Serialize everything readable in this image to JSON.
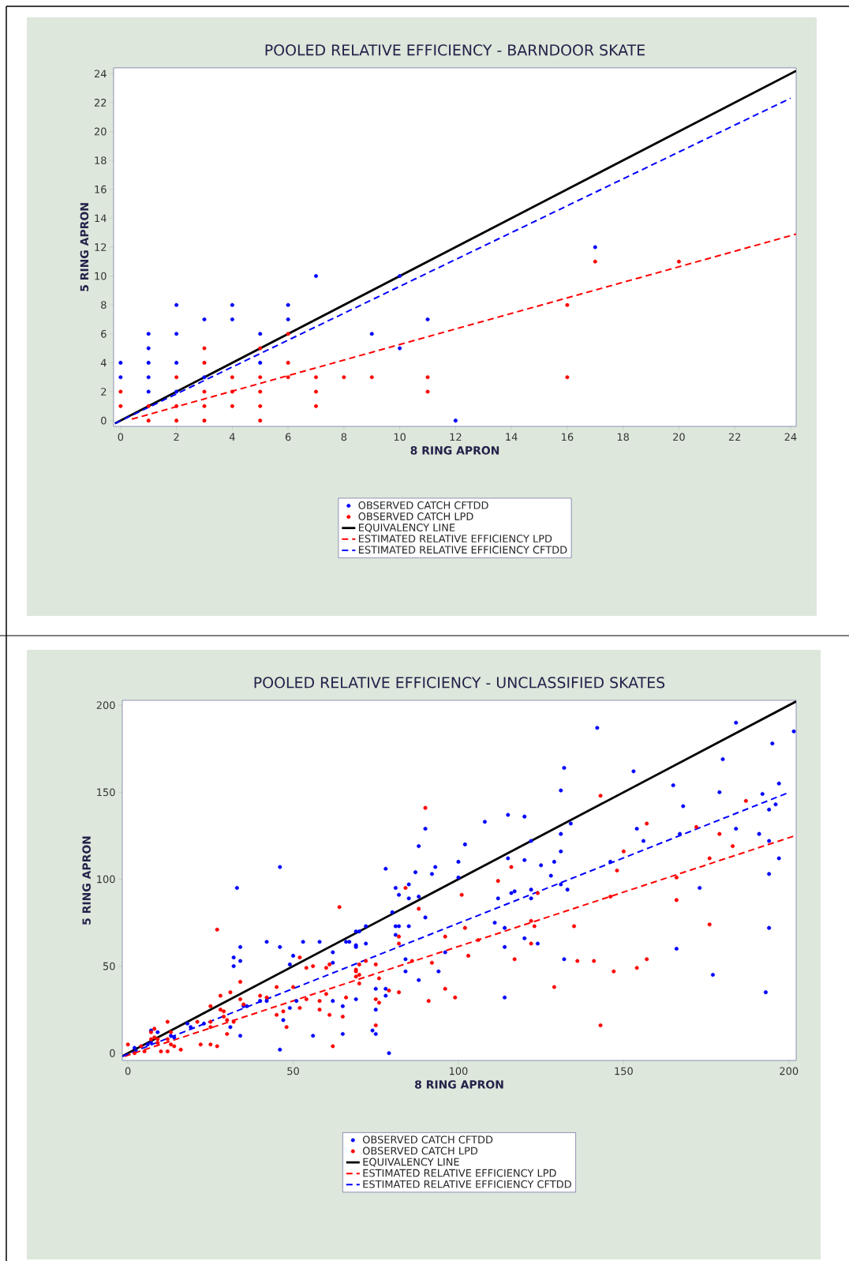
{
  "chart_data": [
    {
      "type": "scatter",
      "title": "POOLED RELATIVE EFFICIENCY - BARNDOOR SKATE",
      "xlabel": "8 RING APRON",
      "ylabel": "5 RING APRON",
      "xlim": [
        -0.25,
        24.2
      ],
      "ylim": [
        -0.4,
        24.4
      ],
      "xticks": [
        0,
        2,
        4,
        6,
        8,
        10,
        12,
        14,
        16,
        18,
        20,
        22,
        24
      ],
      "yticks": [
        0,
        2,
        4,
        6,
        8,
        10,
        12,
        14,
        16,
        18,
        20,
        22,
        24
      ],
      "legend": "bottom",
      "marker": "circle",
      "series": [
        {
          "name": "OBSERVED CATCH CFTDD",
          "color": "#0000ff",
          "x": [
            0,
            0,
            1,
            1,
            1,
            1,
            1,
            2,
            2,
            2,
            2,
            3,
            3,
            4,
            4,
            5,
            5,
            6,
            6,
            7,
            9,
            10,
            10,
            11,
            12,
            17
          ],
          "values": [
            4,
            3,
            6,
            5,
            4,
            3,
            2,
            8,
            6,
            4,
            2,
            7,
            3,
            8,
            7,
            6,
            4,
            8,
            7,
            10,
            6,
            10,
            5,
            7,
            0,
            12
          ]
        },
        {
          "name": "OBSERVED CATCH LPD",
          "color": "#ff0000",
          "x": [
            0,
            0,
            1,
            1,
            2,
            2,
            2,
            3,
            3,
            3,
            3,
            3,
            4,
            4,
            4,
            5,
            5,
            5,
            5,
            5,
            6,
            6,
            6,
            7,
            7,
            7,
            8,
            9,
            11,
            11,
            16,
            16,
            17,
            20
          ],
          "values": [
            2,
            1,
            1,
            0,
            3,
            1,
            0,
            5,
            4,
            2,
            1,
            0,
            3,
            2,
            1,
            5,
            3,
            2,
            1,
            0,
            6,
            4,
            3,
            3,
            2,
            1,
            3,
            3,
            3,
            2,
            8,
            3,
            11,
            11
          ]
        },
        {
          "name": "EQUIVALENCY LINE",
          "type": "line",
          "marker": "none",
          "line_style": "solid",
          "color": "#000000",
          "x": [
            -0.2,
            24.2
          ],
          "values": [
            -0.2,
            24.2
          ]
        },
        {
          "name": "ESTIMATED RELATIVE EFFICIENCY LPD",
          "type": "line",
          "marker": "none",
          "line_style": "dashed",
          "color": "#ff0000",
          "x": [
            0.4,
            24.2
          ],
          "values": [
            0.1,
            12.9
          ]
        },
        {
          "name": "ESTIMATED RELATIVE EFFICIENCY CFTDD",
          "type": "line",
          "marker": "none",
          "line_style": "dashed",
          "color": "#0000ff",
          "x": [
            -0.2,
            24.0
          ],
          "values": [
            -0.2,
            22.3
          ]
        }
      ]
    },
    {
      "type": "scatter",
      "title": "POOLED RELATIVE EFFICIENCY - UNCLASSIFIED SKATES",
      "xlabel": "8 RING APRON",
      "ylabel": "5 RING APRON",
      "xlim": [
        -1.7,
        202.2
      ],
      "ylim": [
        -4.2,
        202.8
      ],
      "xticks": [
        0,
        50,
        100,
        150,
        200
      ],
      "yticks": [
        0,
        50,
        100,
        150,
        200
      ],
      "legend": "bottom",
      "marker": "circle",
      "series": [
        {
          "name": "OBSERVED CATCH CFTDD",
          "color": "#0000ff",
          "x": [
            33,
            46,
            78,
            90,
            88,
            102,
            100,
            93,
            92,
            87,
            81,
            82,
            85,
            88,
            90,
            80,
            81,
            82,
            85,
            81,
            72,
            69,
            72,
            69,
            70,
            67,
            69,
            58,
            53,
            42,
            34,
            46,
            32,
            34,
            32,
            50,
            49,
            62,
            62,
            66,
            142,
            184,
            201.5,
            195,
            180,
            132,
            153,
            165,
            197,
            131,
            179,
            192,
            168,
            196,
            194,
            108,
            115,
            120,
            134,
            154,
            184,
            156,
            167,
            191,
            194,
            197,
            194,
            173,
            194,
            166,
            177,
            193,
            132,
            122,
            131,
            131,
            129,
            125,
            128,
            131,
            133,
            146,
            120,
            115,
            100,
            85,
            111,
            114,
            112,
            122,
            122,
            116,
            117,
            120,
            124,
            114,
            114,
            84,
            84,
            88,
            94,
            96,
            75,
            78,
            78,
            75,
            74,
            75,
            79,
            69,
            65,
            65,
            56,
            62,
            51,
            49,
            47,
            46,
            40,
            42,
            35,
            36,
            31,
            34,
            23,
            18,
            19,
            7,
            9,
            7,
            2,
            13,
            14,
            6
          ],
          "values": [
            95,
            107,
            106,
            129,
            119,
            120,
            110,
            107,
            103,
            104,
            95,
            91,
            89,
            90,
            78,
            81,
            73,
            73,
            73,
            68,
            63,
            61,
            73,
            70,
            70,
            64,
            62,
            64,
            64,
            64,
            61,
            61,
            55,
            53,
            50,
            56,
            51,
            58,
            52,
            64,
            187,
            190,
            185,
            178,
            169,
            164,
            162,
            154,
            155,
            151,
            150,
            149,
            142,
            143,
            140,
            133,
            137,
            136,
            132,
            129,
            129,
            122,
            126,
            126,
            122,
            112,
            103,
            95,
            72,
            60,
            45,
            35,
            54,
            122,
            126,
            116,
            110,
            108,
            102,
            97,
            94,
            110,
            111,
            112,
            101,
            97,
            75,
            72,
            89,
            94,
            89,
            92,
            93,
            66,
            63,
            61,
            32,
            54,
            47,
            42,
            47,
            58,
            37,
            37,
            33,
            25,
            13,
            11,
            0,
            31,
            27,
            11,
            10,
            30,
            30,
            26,
            19,
            2,
            30,
            30,
            27,
            27,
            15,
            10,
            17,
            17,
            15,
            13,
            12,
            6,
            3,
            10,
            9,
            5
          ]
        },
        {
          "name": "OBSERVED CATCH LPD",
          "color": "#ff0000",
          "x": [
            143,
            90,
            187,
            157,
            172,
            179,
            183,
            150,
            176,
            148,
            166,
            146,
            166,
            176,
            116,
            112,
            101,
            84,
            88,
            124,
            102,
            96,
            106,
            122,
            123,
            122,
            135,
            82,
            82,
            72,
            69,
            69,
            75,
            76,
            86,
            92,
            103,
            117,
            136,
            141,
            147,
            154,
            157,
            129,
            143,
            96,
            99,
            91,
            82,
            79,
            75,
            76,
            75,
            64,
            27,
            52,
            54,
            56,
            60,
            61,
            70,
            69,
            70,
            70,
            62,
            45,
            50,
            54,
            52,
            58,
            58,
            60,
            61,
            66,
            65,
            47,
            45,
            48,
            40,
            42,
            34,
            34,
            35,
            31,
            28,
            30,
            32,
            29,
            29,
            30,
            25,
            28,
            25,
            25,
            21,
            22,
            25,
            27,
            16,
            14,
            13,
            12,
            13,
            12,
            10,
            12,
            5,
            2,
            0,
            7,
            8,
            7,
            8,
            9,
            9,
            4
          ],
          "values": [
            148,
            141,
            145,
            132,
            130,
            126,
            119,
            116,
            112,
            105,
            101,
            90,
            88,
            74,
            107,
            99,
            91,
            95,
            83,
            92,
            72,
            67,
            65,
            76,
            73,
            63,
            73,
            67,
            63,
            53,
            48,
            44,
            51,
            43,
            53,
            52,
            56,
            54,
            53,
            53,
            47,
            49,
            54,
            38,
            16,
            37,
            32,
            30,
            35,
            36,
            31,
            29,
            16,
            84,
            71,
            55,
            49,
            50,
            49,
            51,
            51,
            47,
            45,
            40,
            4,
            38,
            38,
            31,
            26,
            25,
            30,
            34,
            22,
            32,
            21,
            24,
            22,
            15,
            33,
            32,
            41,
            31,
            28,
            35,
            33,
            19,
            18,
            24,
            21,
            11,
            27,
            25,
            18,
            15,
            18,
            5,
            5,
            4,
            2,
            4,
            5,
            8,
            12,
            18,
            1,
            1,
            1,
            0,
            5,
            12,
            14,
            8,
            9,
            8,
            6,
            4
          ]
        },
        {
          "name": "EQUIVALENCY LINE",
          "type": "line",
          "marker": "none",
          "line_style": "solid",
          "color": "#000000",
          "x": [
            -1.7,
            202.2
          ],
          "values": [
            -1.7,
            202.2
          ]
        },
        {
          "name": "ESTIMATED RELATIVE EFFICIENCY LPD",
          "type": "line",
          "marker": "none",
          "line_style": "dashed",
          "color": "#ff0000",
          "x": [
            -1.0,
            202.2
          ],
          "values": [
            -1.8,
            125.2
          ]
        },
        {
          "name": "ESTIMATED RELATIVE EFFICIENCY CFTDD",
          "type": "line",
          "marker": "none",
          "line_style": "dashed",
          "color": "#0000ff",
          "x": [
            -1.7,
            199.8
          ],
          "values": [
            -1.8,
            149.7
          ]
        }
      ]
    }
  ]
}
